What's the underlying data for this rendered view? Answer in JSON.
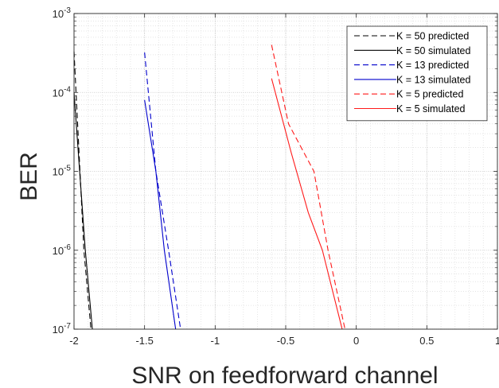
{
  "chart_data": {
    "type": "line",
    "xlabel": "SNR on feedforward channel",
    "ylabel": "BER",
    "xlim": [
      -2,
      1
    ],
    "ylim": [
      1e-07,
      0.001
    ],
    "yscale": "log",
    "grid": true,
    "minor_grid": true,
    "legend_position": "top-right",
    "x_ticks": [
      "-2",
      "-1.5",
      "-1",
      "-0.5",
      "0",
      "0.5",
      "1"
    ],
    "x_tick_values": [
      -2,
      -1.5,
      -1,
      -0.5,
      0,
      0.5,
      1
    ],
    "y_ticks": [
      {
        "base": "10",
        "exp": "-7",
        "value": 1e-07
      },
      {
        "base": "10",
        "exp": "-6",
        "value": 1e-06
      },
      {
        "base": "10",
        "exp": "-5",
        "value": 1e-05
      },
      {
        "base": "10",
        "exp": "-4",
        "value": 0.0001
      },
      {
        "base": "10",
        "exp": "-3",
        "value": 0.001
      }
    ],
    "series": [
      {
        "name": "K = 50 predicted",
        "color": "#000000",
        "dash": true,
        "points": [
          [
            -2.0,
            0.00033
          ],
          [
            -1.96,
            1.2e-05
          ],
          [
            -1.93,
            1e-06
          ],
          [
            -1.88,
            1e-07
          ]
        ]
      },
      {
        "name": "K = 50 simulated",
        "color": "#000000",
        "dash": false,
        "points": [
          [
            -2.0,
            0.0001
          ],
          [
            -1.96,
            1e-05
          ],
          [
            -1.92,
            1e-06
          ],
          [
            -1.87,
            1e-07
          ]
        ]
      },
      {
        "name": "K = 13 predicted",
        "color": "#0000cc",
        "dash": true,
        "points": [
          [
            -1.5,
            0.00032
          ],
          [
            -1.42,
            1e-05
          ],
          [
            -1.33,
            1e-06
          ],
          [
            -1.245,
            1e-07
          ]
        ]
      },
      {
        "name": "K = 13 simulated",
        "color": "#0000cc",
        "dash": false,
        "points": [
          [
            -1.5,
            8e-05
          ],
          [
            -1.42,
            1e-05
          ],
          [
            -1.36,
            1e-06
          ],
          [
            -1.28,
            1e-07
          ]
        ]
      },
      {
        "name": "K = 5 predicted",
        "color": "#ff1a1a",
        "dash": true,
        "points": [
          [
            -0.6,
            0.0004
          ],
          [
            -0.48,
            4e-05
          ],
          [
            -0.3,
            1e-05
          ],
          [
            -0.2,
            1e-06
          ],
          [
            -0.08,
            1e-07
          ]
        ]
      },
      {
        "name": "K = 5 simulated",
        "color": "#ff1a1a",
        "dash": false,
        "points": [
          [
            -0.6,
            0.00015
          ],
          [
            -0.46,
            1.7e-05
          ],
          [
            -0.34,
            3e-06
          ],
          [
            -0.24,
            1e-06
          ],
          [
            -0.1,
            1e-07
          ]
        ]
      }
    ]
  }
}
